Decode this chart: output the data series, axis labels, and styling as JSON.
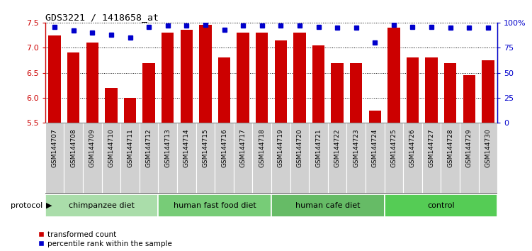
{
  "title": "GDS3221 / 1418658_at",
  "samples": [
    "GSM144707",
    "GSM144708",
    "GSM144709",
    "GSM144710",
    "GSM144711",
    "GSM144712",
    "GSM144713",
    "GSM144714",
    "GSM144715",
    "GSM144716",
    "GSM144717",
    "GSM144718",
    "GSM144719",
    "GSM144720",
    "GSM144721",
    "GSM144722",
    "GSM144723",
    "GSM144724",
    "GSM144725",
    "GSM144726",
    "GSM144727",
    "GSM144728",
    "GSM144729",
    "GSM144730"
  ],
  "transformed_count": [
    7.25,
    6.9,
    7.1,
    6.2,
    6.0,
    6.7,
    7.3,
    7.35,
    7.45,
    6.8,
    7.3,
    7.3,
    7.15,
    7.3,
    7.05,
    6.7,
    6.7,
    5.75,
    7.4,
    6.8,
    6.8,
    6.7,
    6.45,
    6.75
  ],
  "percentile_rank": [
    96,
    92,
    90,
    88,
    85,
    96,
    97,
    97,
    98,
    93,
    97,
    97,
    97,
    97,
    96,
    95,
    95,
    80,
    98,
    96,
    96,
    95,
    95,
    95
  ],
  "bar_color": "#cc0000",
  "dot_color": "#0000cc",
  "ymin": 5.5,
  "ymax": 7.5,
  "y2min": 0,
  "y2max": 100,
  "yticks": [
    5.5,
    6.0,
    6.5,
    7.0,
    7.5
  ],
  "y2ticks": [
    0,
    25,
    50,
    75,
    100
  ],
  "groups": [
    {
      "label": "chimpanzee diet",
      "start": 0,
      "end": 6,
      "color": "#aaddaa"
    },
    {
      "label": "human fast food diet",
      "start": 6,
      "end": 12,
      "color": "#77cc77"
    },
    {
      "label": "human cafe diet",
      "start": 12,
      "end": 18,
      "color": "#66bb66"
    },
    {
      "label": "control",
      "start": 18,
      "end": 24,
      "color": "#55cc55"
    }
  ],
  "protocol_label": "protocol",
  "legend_bar_label": "transformed count",
  "legend_dot_label": "percentile rank within the sample",
  "plot_bg": "#ffffff",
  "label_bg": "#d0d0d0",
  "label_edge": "#888888"
}
